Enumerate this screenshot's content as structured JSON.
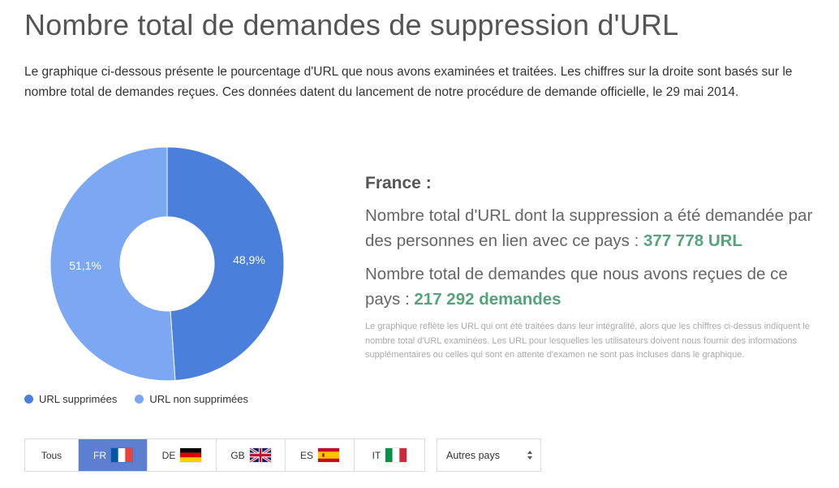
{
  "page": {
    "title": "Nombre total de demandes de suppression d'URL",
    "intro": "Le graphique ci-dessous présente le pourcentage d'URL que nous avons examinées et traitées. Les chiffres sur la droite sont basés sur le nombre total de demandes reçues. Ces données datent du lancement de notre procédure de demande officielle, le 29 mai 2014."
  },
  "chart_data": {
    "type": "pie",
    "donut": true,
    "slices": [
      {
        "label": "URL supprimées",
        "value": 48.9,
        "value_label": "48,9%",
        "color": "#4a7fdb"
      },
      {
        "label": "URL non supprimées",
        "value": 51.1,
        "value_label": "51,1%",
        "color": "#7ba7f3"
      }
    ],
    "legend_position": "bottom-left"
  },
  "stats": {
    "country": "France :",
    "urls_text": "Nombre total d'URL dont la suppression a été demandée par des personnes en lien avec ce pays : ",
    "urls_value": "377 778 URL",
    "requests_text": "Nombre total de demandes que nous avons reçues de ce pays : ",
    "requests_value": "217 292 demandes",
    "footnote": "Le graphique reflète les URL qui ont été traitées dans leur intégralité, alors que les chiffres ci-dessus indiquent le nombre total d'URL examinées. Les URL pour lesquelles les utilisateurs doivent nous fournir des informations supplémentaires ou celles qui sont en attente d'examen ne sont pas incluses dans le graphique.",
    "value_color": "#55a37a"
  },
  "tabs": [
    {
      "label": "Tous",
      "flag": null,
      "active": false
    },
    {
      "label": "FR",
      "flag": "fr-flag-icon",
      "active": true
    },
    {
      "label": "DE",
      "flag": "de-flag-icon",
      "active": false
    },
    {
      "label": "GB",
      "flag": "gb-flag-icon",
      "active": false
    },
    {
      "label": "ES",
      "flag": "es-flag-icon",
      "active": false
    },
    {
      "label": "IT",
      "flag": "it-flag-icon",
      "active": false
    }
  ],
  "other_countries": {
    "label": "Autres pays"
  }
}
